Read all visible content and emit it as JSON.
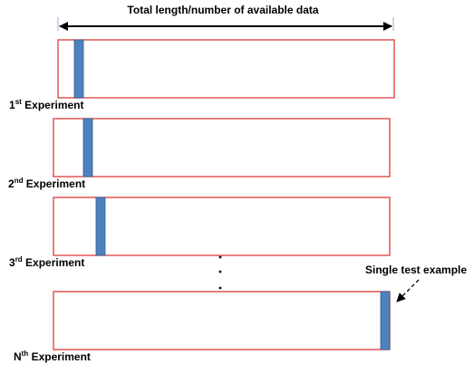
{
  "diagram": {
    "header_label": "Total length/number  of available data",
    "callout_label": "Single test example",
    "ellipsis": "...",
    "colors": {
      "box_border": "#e03a3a",
      "test_slice": "#4f81bd",
      "test_slice_border": "#2e5c8e",
      "arrow": "#000000"
    },
    "experiments": [
      {
        "prefix": "1",
        "suffix": "st",
        "label": " Experiment"
      },
      {
        "prefix": "2",
        "suffix": "nd",
        "label": "  Experiment"
      },
      {
        "prefix": "3",
        "suffix": "rd",
        "label": "  Experiment"
      },
      {
        "prefix": "N",
        "suffix": "th",
        "label": "  Experiment"
      }
    ]
  }
}
